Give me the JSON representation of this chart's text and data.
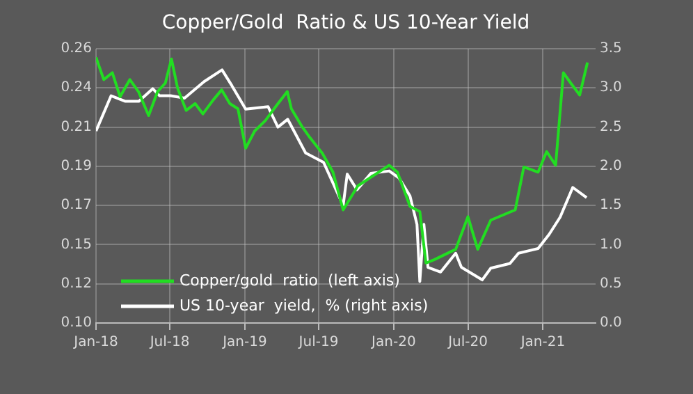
{
  "chart_data": {
    "type": "line",
    "title": "Copper/Gold  Ratio & US 10-Year Yield",
    "xlim": [
      "2018-01-01",
      "2021-05-10"
    ],
    "xticks": [
      {
        "value": "2018-01-01",
        "label": "Jan-18"
      },
      {
        "value": "2018-07-01",
        "label": "Jul-18"
      },
      {
        "value": "2019-01-01",
        "label": "Jan-19"
      },
      {
        "value": "2019-07-01",
        "label": "Jul-19"
      },
      {
        "value": "2020-01-01",
        "label": "Jan-20"
      },
      {
        "value": "2020-07-01",
        "label": "Jul-20"
      },
      {
        "value": "2021-01-01",
        "label": "Jan-21"
      }
    ],
    "ylim": [
      0.1,
      0.26
    ],
    "yticks": [
      {
        "value": 0.1,
        "label": "0.10"
      },
      {
        "value": 0.122857,
        "label": "0.12"
      },
      {
        "value": 0.145714,
        "label": "0.15"
      },
      {
        "value": 0.168571,
        "label": "0.17"
      },
      {
        "value": 0.191429,
        "label": "0.19"
      },
      {
        "value": 0.214286,
        "label": "0.21"
      },
      {
        "value": 0.237143,
        "label": "0.24"
      },
      {
        "value": 0.26,
        "label": "0.26"
      }
    ],
    "y2lim": [
      0,
      3.5
    ],
    "y2ticks": [
      {
        "value": 0,
        "label": "0.0"
      },
      {
        "value": 0.5,
        "label": "0.5"
      },
      {
        "value": 1,
        "label": "1.0"
      },
      {
        "value": 1.5,
        "label": "1.5"
      },
      {
        "value": 2,
        "label": "2.0"
      },
      {
        "value": 2.5,
        "label": "2.5"
      },
      {
        "value": 3,
        "label": "3.0"
      },
      {
        "value": 3.5,
        "label": "3.5"
      }
    ],
    "grid": true,
    "legend": "bottom left",
    "marker": "none",
    "line_style": "solid",
    "series": [
      {
        "name": "Copper/gold  ratio  (left axis)",
        "color": "#22dd22",
        "x": [
          "2018-01-01",
          "2018-01-20",
          "2018-02-10",
          "2018-03-01",
          "2018-03-25",
          "2018-04-15",
          "2018-05-10",
          "2018-06-01",
          "2018-06-20",
          "2018-07-05",
          "2018-07-20",
          "2018-08-10",
          "2018-09-01",
          "2018-09-20",
          "2018-10-15",
          "2018-11-05",
          "2018-11-25",
          "2018-12-15",
          "2019-01-03",
          "2019-01-25",
          "2019-02-20",
          "2019-03-20",
          "2019-04-15",
          "2019-04-25",
          "2019-05-20",
          "2019-06-10",
          "2019-07-10",
          "2019-08-05",
          "2019-08-30",
          "2019-10-05",
          "2019-11-06",
          "2019-12-21",
          "2020-01-10",
          "2020-02-10",
          "2020-03-05",
          "2020-03-20",
          "2020-04-10",
          "2020-06-01",
          "2020-07-01",
          "2020-07-25",
          "2020-08-26",
          "2020-10-25",
          "2020-11-15",
          "2020-12-20",
          "2021-01-10",
          "2021-02-01",
          "2021-02-20",
          "2021-03-10",
          "2021-04-01",
          "2021-04-20"
        ],
        "values": [
          0.255,
          0.242,
          0.246,
          0.232,
          0.242,
          0.235,
          0.221,
          0.235,
          0.24,
          0.254,
          0.237,
          0.224,
          0.228,
          0.222,
          0.23,
          0.236,
          0.228,
          0.225,
          0.202,
          0.212,
          0.218,
          0.227,
          0.235,
          0.225,
          0.215,
          0.208,
          0.199,
          0.188,
          0.166,
          0.18,
          0.185,
          0.192,
          0.188,
          0.168,
          0.165,
          0.135,
          0.137,
          0.143,
          0.162,
          0.143,
          0.16,
          0.166,
          0.191,
          0.188,
          0.2,
          0.192,
          0.246,
          0.24,
          0.233,
          0.252
        ]
      },
      {
        "name": "US 10-year  yield,  % (right axis)",
        "color": "#ffffff",
        "axis": "y2",
        "x": [
          "2018-01-01",
          "2018-02-07",
          "2018-03-13",
          "2018-04-16",
          "2018-05-20",
          "2018-06-06",
          "2018-07-03",
          "2018-08-06",
          "2018-09-23",
          "2018-11-06",
          "2018-11-30",
          "2019-01-03",
          "2019-02-27",
          "2019-03-23",
          "2019-04-16",
          "2019-05-30",
          "2019-07-13",
          "2019-08-30",
          "2019-09-09",
          "2019-10-03",
          "2019-11-06",
          "2019-12-21",
          "2020-01-14",
          "2020-02-10",
          "2020-02-27",
          "2020-03-05",
          "2020-03-15",
          "2020-03-25",
          "2020-04-25",
          "2020-06-01",
          "2020-06-15",
          "2020-08-05",
          "2020-08-26",
          "2020-10-12",
          "2020-11-02",
          "2020-12-20",
          "2021-01-16",
          "2021-02-12",
          "2021-03-15",
          "2021-04-18"
        ],
        "values": [
          2.45,
          2.9,
          2.83,
          2.83,
          2.99,
          2.9,
          2.9,
          2.87,
          3.08,
          3.23,
          3.03,
          2.73,
          2.76,
          2.5,
          2.6,
          2.17,
          2.05,
          1.5,
          1.9,
          1.7,
          1.91,
          1.94,
          1.85,
          1.62,
          1.26,
          0.53,
          1.26,
          0.71,
          0.65,
          0.89,
          0.71,
          0.55,
          0.7,
          0.76,
          0.89,
          0.95,
          1.13,
          1.35,
          1.73,
          1.6
        ]
      }
    ]
  }
}
